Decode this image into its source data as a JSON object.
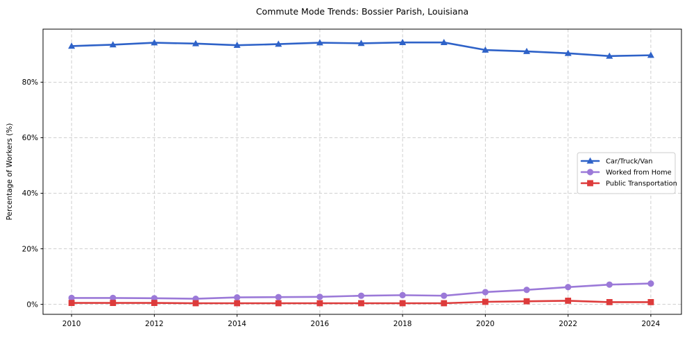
{
  "figure": {
    "background": "#ffffff",
    "plot_background": "#ffffff",
    "spine_color": "#000000",
    "grid_color": "#c9c9c9",
    "text_color": "#000000"
  },
  "chart_data": {
    "type": "line",
    "title": "Commute Mode Trends: Bossier Parish, Louisiana",
    "xlabel": "",
    "ylabel": "Percentage of Workers (%)",
    "x": [
      2010,
      2011,
      2012,
      2013,
      2014,
      2015,
      2016,
      2017,
      2018,
      2019,
      2020,
      2021,
      2022,
      2023,
      2024
    ],
    "series": [
      {
        "name": "Car/Truck/Van",
        "color": "#2e62c8",
        "marker": "triangle",
        "values": [
          93.0,
          93.5,
          94.2,
          93.9,
          93.3,
          93.7,
          94.2,
          94.0,
          94.3,
          94.3,
          91.6,
          91.1,
          90.4,
          89.4,
          89.7
        ]
      },
      {
        "name": "Worked from Home",
        "color": "#9b79d8",
        "marker": "circle",
        "values": [
          2.3,
          2.3,
          2.2,
          2.0,
          2.5,
          2.6,
          2.7,
          3.1,
          3.3,
          3.1,
          4.4,
          5.2,
          6.2,
          7.1,
          7.5
        ]
      },
      {
        "name": "Public Transportation",
        "color": "#dd3b3b",
        "marker": "square",
        "values": [
          0.5,
          0.5,
          0.5,
          0.4,
          0.4,
          0.4,
          0.4,
          0.4,
          0.4,
          0.4,
          0.9,
          1.1,
          1.3,
          0.8,
          0.8
        ]
      }
    ],
    "xticks": {
      "values": [
        2010,
        2012,
        2014,
        2016,
        2018,
        2020,
        2022,
        2024
      ],
      "labels": [
        "2010",
        "2012",
        "2014",
        "2016",
        "2018",
        "2020",
        "2022",
        "2024"
      ]
    },
    "yticks": {
      "values": [
        0,
        20,
        40,
        60,
        80
      ],
      "labels": [
        "0%",
        "20%",
        "40%",
        "60%",
        "80%"
      ]
    },
    "xlim": [
      2009.31,
      2024.74
    ],
    "ylim": [
      -3.6,
      99.1
    ],
    "grid": {
      "visible": true,
      "style": "dashed",
      "axis": "both"
    },
    "legend": {
      "position": "center-right",
      "entries": [
        "Car/Truck/Van",
        "Worked from Home",
        "Public Transportation"
      ]
    }
  }
}
